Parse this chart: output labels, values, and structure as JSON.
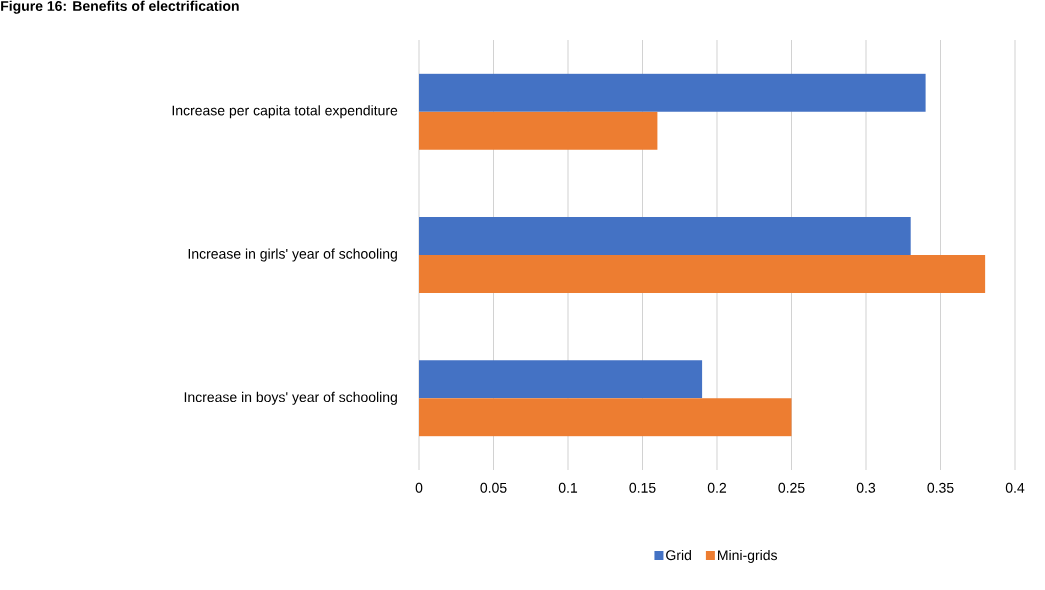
{
  "chart_data": {
    "type": "bar",
    "orientation": "horizontal",
    "title": "Figure 16: Benefits of electrification",
    "categories": [
      "Increase per capita total expenditure",
      "Increase in girls' year of schooling",
      "Increase in boys' year of schooling"
    ],
    "series": [
      {
        "name": "Grid",
        "color": "#4472c4",
        "values": [
          0.34,
          0.33,
          0.19
        ]
      },
      {
        "name": "Mini-grids",
        "color": "#ed7d31",
        "values": [
          0.16,
          0.38,
          0.25
        ]
      }
    ],
    "xlim": [
      0,
      0.4
    ],
    "xticks": [
      0,
      0.05,
      0.1,
      0.15,
      0.2,
      0.25,
      0.3,
      0.35,
      0.4
    ],
    "grid": "x",
    "legend": "bottom"
  }
}
